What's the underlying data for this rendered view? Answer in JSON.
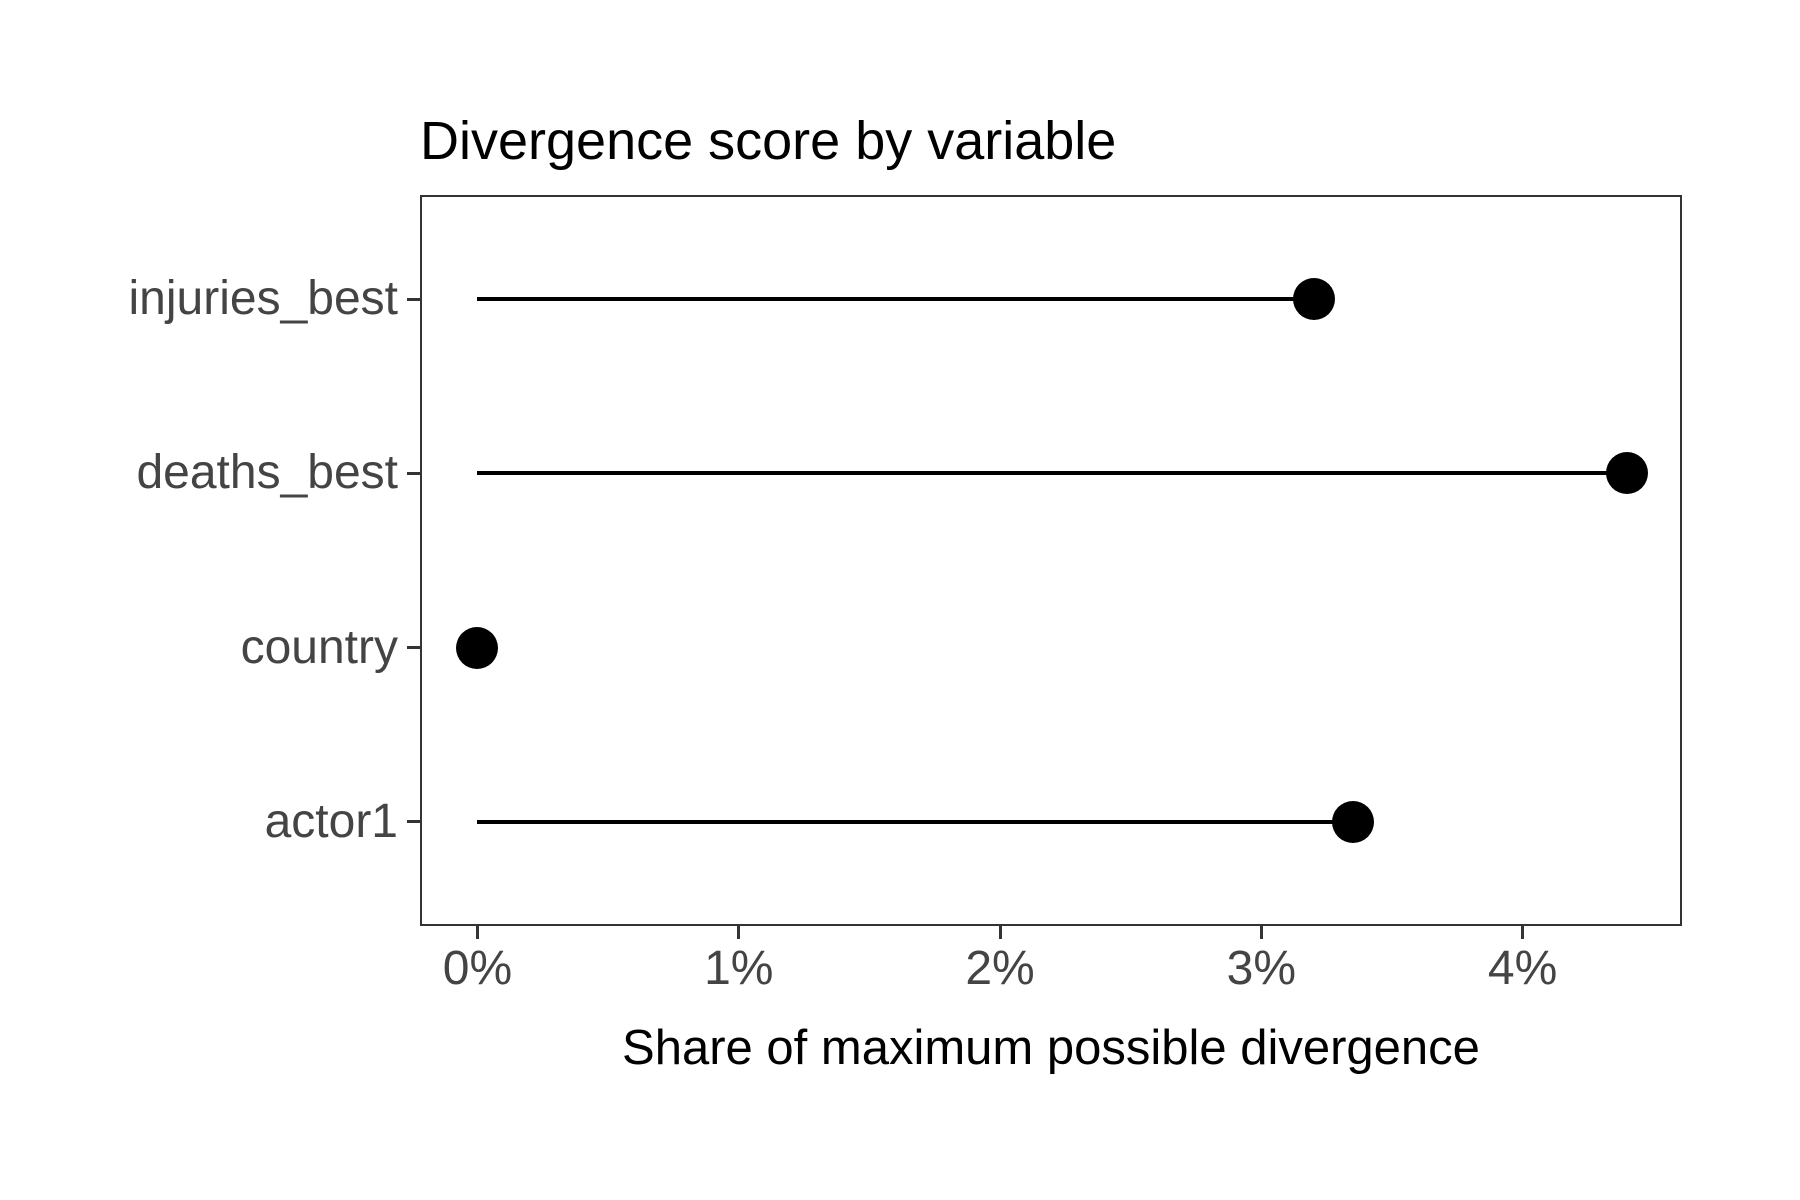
{
  "chart_data": {
    "type": "bar",
    "style": "horizontal-lollipop",
    "title": "Divergence score by variable",
    "xlabel": "Share of maximum possible divergence",
    "ylabel": "",
    "categories": [
      "injuries_best",
      "deaths_best",
      "country",
      "actor1"
    ],
    "values": [
      3.2,
      4.4,
      0,
      3.35
    ],
    "unit": "percent",
    "xlim": [
      -0.22,
      4.61
    ],
    "x_tick_values": [
      0,
      1,
      2,
      3,
      4
    ],
    "x_tick_labels": [
      "0%",
      "1%",
      "2%",
      "3%",
      "4%"
    ],
    "grid": false,
    "legend": "none",
    "colors": {
      "marker": "#000000",
      "segment": "#000000",
      "axis_text": "#444444",
      "title_text": "#000000",
      "panel_border": "#333333",
      "background": "#ffffff"
    }
  }
}
